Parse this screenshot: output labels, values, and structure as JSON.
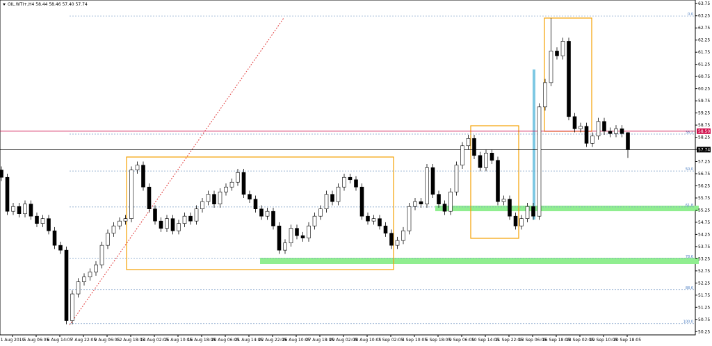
{
  "chart_data": {
    "type": "candlestick",
    "title": "OIL.WTI+,H4  58.44 58.46 57.40 57.74",
    "ylim": [
      50.0,
      63.9
    ],
    "yticks": [
      63.75,
      63.25,
      62.75,
      62.25,
      61.75,
      61.25,
      60.75,
      60.25,
      59.75,
      59.25,
      58.75,
      58.25,
      57.75,
      57.25,
      56.75,
      56.25,
      55.75,
      55.25,
      54.75,
      54.25,
      53.75,
      53.25,
      52.75,
      52.25,
      51.75,
      51.25,
      50.75,
      50.25
    ],
    "categories": [
      "1 Aug 2019",
      "5 Aug 06:05",
      "6 Aug 14:05",
      "7 Aug 22:05",
      "9 Aug 06:05",
      "12 Aug 18:05",
      "14 Aug 02:05",
      "15 Aug 10:05",
      "16 Aug 18:05",
      "20 Aug 06:05",
      "21 Aug 14:05",
      "22 Aug 22:05",
      "26 Aug 10:05",
      "27 Aug 18:05",
      "29 Aug 02:05",
      "30 Aug 10:05",
      "3 Sep 02:05",
      "4 Sep 10:05",
      "5 Sep 18:05",
      "9 Sep 06:05",
      "10 Sep 14:05",
      "11 Sep 22:05",
      "13 Sep 06:05",
      "16 Sep 18:05",
      "18 Sep 02:05",
      "19 Sep 10:05",
      "20 Sep 18:05"
    ],
    "up_color": "#ffffff",
    "down_color": "#000000",
    "price_lines": [
      {
        "value": 58.5,
        "label": "58.50",
        "color": "#d0104c"
      },
      {
        "value": 57.74,
        "label": "57.74",
        "color": "#000000"
      }
    ],
    "fib_levels": [
      {
        "value": 63.24,
        "label": "0.0"
      },
      {
        "value": 58.38,
        "label": "38.2"
      },
      {
        "value": 56.86,
        "label": "50.0"
      },
      {
        "value": 55.38,
        "label": "61.8"
      },
      {
        "value": 53.26,
        "label": "78.6"
      },
      {
        "value": 51.98,
        "label": "88.6"
      },
      {
        "value": 50.58,
        "label": "100.0"
      }
    ],
    "ohlc": [
      [
        56.9,
        57.05,
        56.45,
        56.6
      ],
      [
        56.6,
        56.75,
        55.05,
        55.2
      ],
      [
        55.2,
        55.55,
        55.05,
        55.4
      ],
      [
        55.4,
        55.55,
        54.95,
        55.1
      ],
      [
        55.1,
        55.65,
        54.95,
        55.5
      ],
      [
        55.5,
        55.65,
        54.85,
        55.0
      ],
      [
        55.0,
        55.15,
        54.55,
        54.7
      ],
      [
        54.7,
        55.05,
        54.55,
        54.9
      ],
      [
        54.9,
        55.05,
        54.25,
        54.4
      ],
      [
        54.4,
        54.55,
        53.65,
        53.8
      ],
      [
        53.8,
        53.95,
        53.45,
        53.6
      ],
      [
        53.6,
        53.75,
        50.55,
        50.7
      ],
      [
        50.7,
        51.95,
        50.55,
        51.8
      ],
      [
        51.8,
        52.45,
        51.65,
        52.3
      ],
      [
        52.3,
        52.65,
        52.15,
        52.5
      ],
      [
        52.5,
        52.85,
        52.35,
        52.7
      ],
      [
        52.7,
        53.15,
        52.55,
        53.0
      ],
      [
        53.0,
        53.95,
        52.85,
        53.8
      ],
      [
        53.8,
        54.45,
        53.65,
        54.3
      ],
      [
        54.3,
        54.75,
        54.15,
        54.6
      ],
      [
        54.6,
        54.95,
        54.45,
        54.8
      ],
      [
        54.8,
        55.05,
        54.65,
        54.9
      ],
      [
        54.9,
        57.05,
        54.75,
        56.9
      ],
      [
        56.9,
        57.25,
        56.75,
        57.1
      ],
      [
        57.1,
        57.25,
        56.05,
        56.2
      ],
      [
        56.2,
        56.35,
        55.15,
        55.3
      ],
      [
        55.3,
        55.45,
        54.65,
        54.8
      ],
      [
        54.8,
        54.95,
        54.35,
        54.5
      ],
      [
        54.5,
        55.05,
        54.35,
        54.9
      ],
      [
        54.9,
        55.05,
        54.25,
        54.4
      ],
      [
        54.4,
        54.85,
        54.25,
        54.7
      ],
      [
        54.7,
        55.15,
        54.55,
        55.0
      ],
      [
        55.0,
        55.15,
        54.65,
        54.8
      ],
      [
        54.8,
        55.45,
        54.65,
        55.3
      ],
      [
        55.3,
        55.75,
        55.15,
        55.6
      ],
      [
        55.6,
        56.05,
        55.45,
        55.9
      ],
      [
        55.9,
        56.05,
        55.35,
        55.5
      ],
      [
        55.5,
        56.15,
        55.35,
        56.0
      ],
      [
        56.0,
        56.35,
        55.85,
        56.2
      ],
      [
        56.2,
        56.55,
        56.05,
        56.4
      ],
      [
        56.4,
        56.95,
        56.25,
        56.8
      ],
      [
        56.8,
        56.95,
        55.75,
        55.9
      ],
      [
        55.9,
        56.05,
        55.55,
        55.7
      ],
      [
        55.7,
        55.85,
        55.15,
        55.3
      ],
      [
        55.3,
        55.45,
        54.85,
        55.0
      ],
      [
        55.0,
        55.35,
        54.85,
        55.2
      ],
      [
        55.2,
        55.35,
        54.45,
        54.6
      ],
      [
        54.6,
        54.75,
        53.45,
        53.6
      ],
      [
        53.6,
        54.05,
        53.45,
        53.9
      ],
      [
        53.9,
        54.65,
        53.75,
        54.5
      ],
      [
        54.5,
        54.65,
        54.05,
        54.2
      ],
      [
        54.2,
        54.35,
        53.95,
        54.1
      ],
      [
        54.1,
        54.75,
        53.95,
        54.6
      ],
      [
        54.6,
        55.15,
        54.45,
        55.0
      ],
      [
        55.0,
        55.45,
        54.85,
        55.3
      ],
      [
        55.3,
        56.05,
        55.15,
        55.9
      ],
      [
        55.9,
        56.05,
        55.45,
        55.6
      ],
      [
        55.6,
        56.35,
        55.45,
        56.2
      ],
      [
        56.2,
        56.75,
        56.05,
        56.6
      ],
      [
        56.6,
        56.75,
        56.35,
        56.5
      ],
      [
        56.5,
        56.65,
        56.05,
        56.2
      ],
      [
        56.2,
        56.35,
        54.85,
        55.0
      ],
      [
        55.0,
        55.15,
        54.65,
        54.8
      ],
      [
        54.8,
        55.05,
        54.65,
        54.9
      ],
      [
        54.9,
        55.05,
        54.45,
        54.6
      ],
      [
        54.6,
        54.75,
        54.15,
        54.3
      ],
      [
        54.3,
        54.45,
        53.65,
        53.8
      ],
      [
        53.8,
        54.15,
        53.65,
        54.0
      ],
      [
        54.0,
        54.55,
        53.85,
        54.4
      ],
      [
        54.4,
        55.55,
        54.25,
        55.4
      ],
      [
        55.4,
        55.75,
        55.25,
        55.6
      ],
      [
        55.6,
        55.75,
        55.35,
        55.5
      ],
      [
        55.5,
        57.15,
        55.35,
        57.0
      ],
      [
        57.0,
        57.15,
        55.75,
        55.9
      ],
      [
        55.9,
        56.05,
        55.35,
        55.5
      ],
      [
        55.5,
        55.65,
        55.05,
        55.2
      ],
      [
        55.2,
        56.15,
        55.05,
        56.0
      ],
      [
        56.0,
        57.25,
        55.85,
        57.1
      ],
      [
        57.1,
        58.05,
        56.95,
        57.9
      ],
      [
        57.9,
        58.35,
        57.75,
        58.2
      ],
      [
        58.2,
        58.35,
        57.35,
        57.5
      ],
      [
        57.5,
        57.65,
        56.85,
        57.0
      ],
      [
        57.0,
        57.75,
        56.85,
        57.6
      ],
      [
        57.6,
        57.75,
        57.15,
        57.3
      ],
      [
        57.3,
        57.45,
        55.45,
        55.6
      ],
      [
        55.6,
        55.85,
        55.45,
        55.7
      ],
      [
        55.7,
        55.85,
        54.85,
        55.0
      ],
      [
        55.0,
        55.15,
        54.45,
        54.6
      ],
      [
        54.6,
        55.05,
        54.45,
        54.9
      ],
      [
        54.9,
        55.55,
        54.75,
        55.4
      ],
      [
        55.4,
        55.55,
        54.85,
        55.0
      ],
      [
        55.0,
        59.65,
        54.85,
        59.5
      ],
      [
        59.5,
        60.65,
        59.35,
        60.5
      ],
      [
        60.5,
        63.15,
        60.35,
        61.8
      ],
      [
        61.8,
        61.95,
        61.45,
        61.6
      ],
      [
        61.6,
        62.35,
        61.45,
        62.2
      ],
      [
        62.2,
        62.35,
        58.95,
        59.1
      ],
      [
        59.1,
        59.25,
        58.45,
        58.6
      ],
      [
        58.6,
        58.85,
        58.45,
        58.7
      ],
      [
        58.7,
        58.85,
        57.85,
        58.0
      ],
      [
        58.0,
        58.45,
        57.85,
        58.3
      ],
      [
        58.3,
        59.05,
        58.15,
        58.9
      ],
      [
        58.9,
        59.05,
        58.35,
        58.5
      ],
      [
        58.5,
        58.65,
        58.25,
        58.4
      ],
      [
        58.4,
        58.75,
        58.25,
        58.6
      ],
      [
        58.6,
        58.75,
        58.25,
        58.4
      ],
      [
        58.44,
        58.46,
        57.4,
        57.74
      ]
    ]
  }
}
